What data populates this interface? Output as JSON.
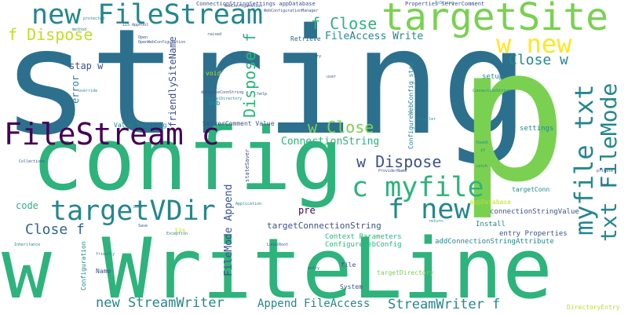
{
  "colors": {
    "navy": "#2d708e",
    "green": "#2eb37c",
    "lime": "#7ad151",
    "teal": "#24878e",
    "purple": "#440154",
    "indigo": "#3b528b",
    "yellow": "#fde725",
    "yellowgreen": "#bddf26",
    "darkblue": "#31668e"
  },
  "words": {
    "string": "string",
    "p": "p",
    "config": "config",
    "w_writeline": "w WriteLine",
    "targetsite": "targetSite",
    "new_filestream": "new FileStream",
    "filestream_c": "FileStream c",
    "targetvdir": "targetVDir",
    "c_myfile": "c myfile",
    "f_new": "f new",
    "w_new": "w new",
    "myfile_txt": "myfile txt",
    "txt_filemode": "txt FileMode",
    "f_dispose": "f Dispose",
    "f_close": "f Close",
    "w_close": "w Close",
    "w_dispose": "w Dispose",
    "dispose_f": "Dispose f",
    "close_f": "Close f",
    "close_w": "Close w",
    "new_streamwriter": "new StreamWriter",
    "streamwriter_f": "StreamWriter f",
    "append_fileaccess": "Append FileAccess",
    "fileaccess_write": "FileAccess Write",
    "connectionstring": "ConnectionString",
    "targetconnectionstring": "targetConnectionString",
    "filemode_append": "FileMode Append",
    "friendlysitename": "friendlySiteName",
    "error": "error",
    "stap_w": "stap w",
    "code": "code",
    "pre": "pre",
    "setup": "setup",
    "settings": "settings",
    "context_parameters": "Context Parameters",
    "configurewebconfig": "ConfigureWebConfig",
    "addconnectionstringattribute": "addConnectionStringAttribute",
    "install": "Install",
    "entry_properties": "entry Properties",
    "connectionstringvalue": "connectionStringValue",
    "appdatabase": "appDatabase",
    "targetconn": "targetConn",
    "targetdirectory": "targetDirectory",
    "servercomment_value": "ServerComment Value",
    "value_tostring": "Value ToString",
    "configuration": "Configuration",
    "name": "Name",
    "system": "System",
    "file": "file",
    "web": "Web",
    "void": "void",
    "retrieve": "Retrieve",
    "configurewebconfig_stap": "ConfigureWebConfig stap",
    "statesaver": "stateSaver",
    "directoryentry": "DirectoryEntry",
    "properties_servercomment": "Properties ServerComment",
    "connectionstringsettings_appdatabase": "ConnectionStringSettings appDatabase",
    "iis": "iis",
    "databaseconnstring": "databaseConnString",
    "providername": "ProviderName",
    "localroot": "LocalRoot",
    "application": "Application",
    "webconfiguration": "WebConfiguration",
    "webconfigurationmanager": "WebConfigurationManager",
    "override": "override",
    "protected": "protected",
    "exception": "Exception",
    "openwebconfiguration": "OpenWebConfiguration",
    "bool": "bool",
    "collections": "Collections",
    "inheritance": "Inheritance",
    "friendly": "friendly",
    "catch": "catch",
    "save": "Save",
    "int": "int",
    "user": "user",
    "private": "private",
    "found": "found",
    "open": "Open",
    "raised": "raised",
    "help": "help",
    "tostring": "ToString",
    "connectionstrings": "ConnectionStrings",
    "iisapppool": "IIS AppPool",
    "virtualdirectory": "VirtualDirectory",
    "method": "method",
    "installer": "Installer",
    "entry": "entry",
    "return": "return",
    "try": "try",
    "if": "if"
  }
}
